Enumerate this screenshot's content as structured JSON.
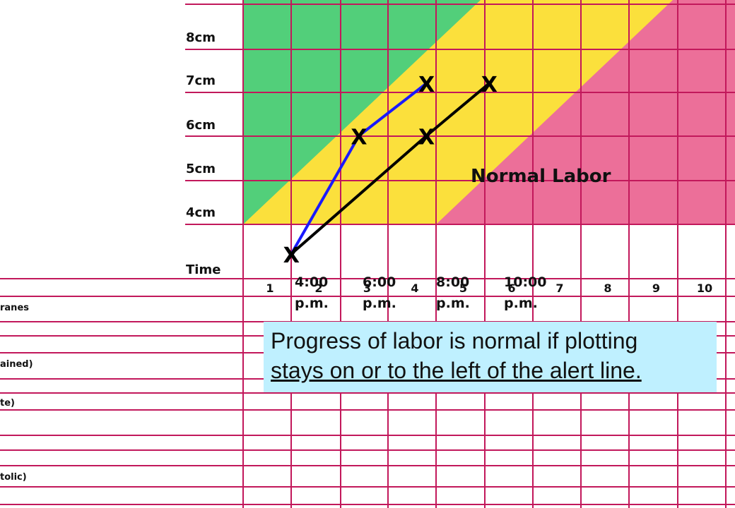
{
  "chart_data": {
    "type": "line",
    "title": "",
    "xlabel": "Time",
    "ylabel": "",
    "ylim": [
      "4cm",
      "8cm"
    ],
    "y_ticks": [
      "8cm",
      "7cm",
      "6cm",
      "5cm",
      "4cm"
    ],
    "hour_ticks": [
      "1",
      "2",
      "3",
      "4",
      "5",
      "6",
      "7",
      "8",
      "9",
      "10"
    ],
    "time_labels": [
      "4:00 p.m.",
      "6:00 p.m.",
      "8:00 p.m.",
      "10:00 p.m."
    ],
    "row_labels": [
      "ranes",
      "ained)",
      "te)",
      "tolic)"
    ],
    "zone_label": "Normal  Labor",
    "zone_colors": {
      "green": "#52cf7a",
      "yellow": "#fbe03c",
      "pink": "#ec6f99",
      "grid": "#c2185b"
    },
    "series": [
      {
        "color": "#1a1aff",
        "marker": "X",
        "points": [
          {
            "x": 2,
            "y": 3.1
          },
          {
            "x": 3.4,
            "y": 5.8
          },
          {
            "x": 4.8,
            "y": 7.0
          }
        ]
      },
      {
        "color": "#000000",
        "marker": "X",
        "points": [
          {
            "x": 2,
            "y": 3.1
          },
          {
            "x": 4.8,
            "y": 5.8
          },
          {
            "x": 6.1,
            "y": 7.0
          }
        ]
      }
    ]
  },
  "callout": {
    "line1": "Progress of labor is normal if plotting",
    "line2": "stays on or to the left of the alert line."
  }
}
